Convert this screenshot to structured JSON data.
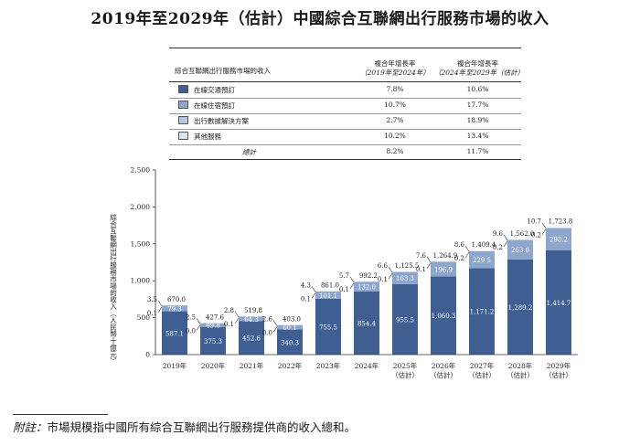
{
  "title": "2019年至2029年（估計）中國綜合互聯網出行服務市場的收入",
  "legend_table": {
    "header": {
      "segment_col": "綜合互聯網出行服務市場的收入",
      "cagr1_line1": "複合年增長率",
      "cagr1_line2": "（2019年至2024年）",
      "cagr2_line1": "複合年增長率",
      "cagr2_line2": "（2024年至2029年（估計）"
    },
    "rows": [
      {
        "name": "在線交通預訂",
        "cagr1": "7.8%",
        "cagr2": "10.6%",
        "color": "#3f5f93"
      },
      {
        "name": "在線住宿預訂",
        "cagr1": "10.7%",
        "cagr2": "17.7%",
        "color": "#8ea5cc"
      },
      {
        "name": "出行數據解決方案",
        "cagr1": "2.7%",
        "cagr2": "18.9%",
        "color": "#b6c6e0"
      },
      {
        "name": "其他服務",
        "cagr1": "10.2%",
        "cagr2": "13.4%",
        "color": "#dbe4f1"
      }
    ],
    "total": {
      "name": "總計",
      "cagr1": "8.2%",
      "cagr2": "11.7%"
    }
  },
  "chart_data": {
    "type": "bar",
    "stacked": true,
    "ylabel": "綜合互聯網出行服務市場的收入（人民幣十億元）",
    "ylim": [
      0,
      2500
    ],
    "yticks": [
      0,
      500,
      1000,
      1500,
      2000,
      2500
    ],
    "ytick_labels": [
      "0",
      "500",
      "1,000",
      "1,500",
      "2,000",
      "2,500"
    ],
    "categories": [
      "2019年",
      "2020年",
      "2021年",
      "2022年",
      "2023年",
      "2024年",
      "2025年",
      "2026年",
      "2027年",
      "2028年",
      "2029年"
    ],
    "category_sublabels": [
      "",
      "",
      "",
      "",
      "",
      "",
      "（估計）",
      "（估計）",
      "（估計）",
      "（估計）",
      "（估計）"
    ],
    "series": [
      {
        "name": "在線交通預訂",
        "color": "#3f5f93",
        "label_color": "#ffffff",
        "values": [
          587.1,
          375.3,
          452.6,
          340.3,
          755.5,
          854.4,
          955.5,
          1060.3,
          1171.2,
          1289.2,
          1414.7
        ],
        "labels": [
          "587.1",
          "375.3",
          "452.6",
          "340.3",
          "755.5",
          "854.4",
          "955.5",
          "1,060.3",
          "1,171.2",
          "1,289.2",
          "1,414.7"
        ]
      },
      {
        "name": "在線住宿預訂",
        "color": "#8ea5cc",
        "label_color": "#ffffff",
        "values": [
          79.3,
          49.8,
          64.3,
          60.1,
          101.1,
          132.0,
          163.3,
          196.9,
          229.5,
          263.0,
          298.2
        ],
        "labels": [
          "79.3",
          "49.8",
          "64.3",
          "60.1",
          "101.1",
          "132.0",
          "163.3",
          "196.9",
          "229.5",
          "263.0",
          "298.2"
        ]
      },
      {
        "name": "出行數據解決方案",
        "color": "#b6c6e0",
        "label_color": "#1a1a1a",
        "values": [
          0.1,
          0.0,
          0.1,
          0.0,
          0.1,
          0.1,
          0.1,
          0.1,
          0.2,
          0.2,
          0.2
        ],
        "labels": [
          "0.1",
          "0.0",
          "0.1",
          "0.0",
          "0.1",
          "0.1",
          "0.1",
          "0.1",
          "0.2",
          "0.2",
          "0.2"
        ]
      },
      {
        "name": "其他服務",
        "color": "#dbe4f1",
        "label_color": "#1a1a1a",
        "values": [
          3.5,
          2.5,
          2.8,
          2.6,
          4.3,
          5.7,
          6.6,
          7.6,
          8.6,
          9.6,
          10.7
        ],
        "labels": [
          "3.5",
          "2.5",
          "2.8",
          "2.6",
          "4.3",
          "5.7",
          "6.6",
          "7.6",
          "8.6",
          "9.6",
          "10.7"
        ]
      }
    ],
    "totals": [
      670.0,
      427.6,
      519.8,
      403.0,
      861.0,
      992.2,
      1125.5,
      1264.9,
      1409.4,
      1562.0,
      1723.8
    ],
    "total_labels": [
      "670.0",
      "427.6",
      "519.8",
      "403.0",
      "861.0",
      "992.2",
      "1,125.5",
      "1,264.9",
      "1,409.4",
      "1,562.0",
      "1,723.8"
    ]
  },
  "footnote": {
    "label": "附註：",
    "text": "市場規模指中國所有綜合互聯網出行服務提供商的收入總和。"
  }
}
